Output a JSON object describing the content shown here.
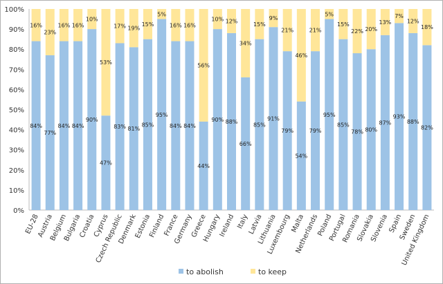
{
  "chart_data": {
    "type": "bar",
    "stacked": true,
    "title": "",
    "xlabel": "",
    "ylabel": "",
    "ylim": [
      0,
      100
    ],
    "yticks": [
      "0%",
      "10%",
      "20%",
      "30%",
      "40%",
      "50%",
      "60%",
      "70%",
      "80%",
      "90%",
      "100%"
    ],
    "grid": false,
    "legend_placement": "bottom",
    "categories": [
      "EU-28",
      "Austria",
      "Belgium",
      "Bulgaria",
      "Croatia",
      "Cyprus",
      "Czech Republic",
      "Denmark",
      "Estonia",
      "Finland",
      "France",
      "Germany",
      "Greece",
      "Hungary",
      "Ireland",
      "Italy",
      "Latvia",
      "Lithuania",
      "Luxembourg",
      "Malta",
      "Netherlands",
      "Poland",
      "Portugal",
      "Romania",
      "Slovakia",
      "Slovenia",
      "Spain",
      "Sweden",
      "United Kingdom"
    ],
    "series": [
      {
        "name": "to abolish",
        "color": "#9dc3e6",
        "values": [
          84,
          77,
          84,
          84,
          90,
          47,
          83,
          81,
          85,
          95,
          84,
          84,
          44,
          90,
          88,
          66,
          85,
          91,
          79,
          54,
          79,
          95,
          85,
          78,
          80,
          87,
          93,
          88,
          82
        ]
      },
      {
        "name": "to keep",
        "color": "#ffe699",
        "values": [
          16,
          23,
          16,
          16,
          10,
          53,
          17,
          19,
          15,
          5,
          16,
          16,
          56,
          10,
          12,
          34,
          15,
          9,
          21,
          46,
          21,
          5,
          15,
          22,
          20,
          13,
          7,
          12,
          18
        ]
      }
    ]
  }
}
